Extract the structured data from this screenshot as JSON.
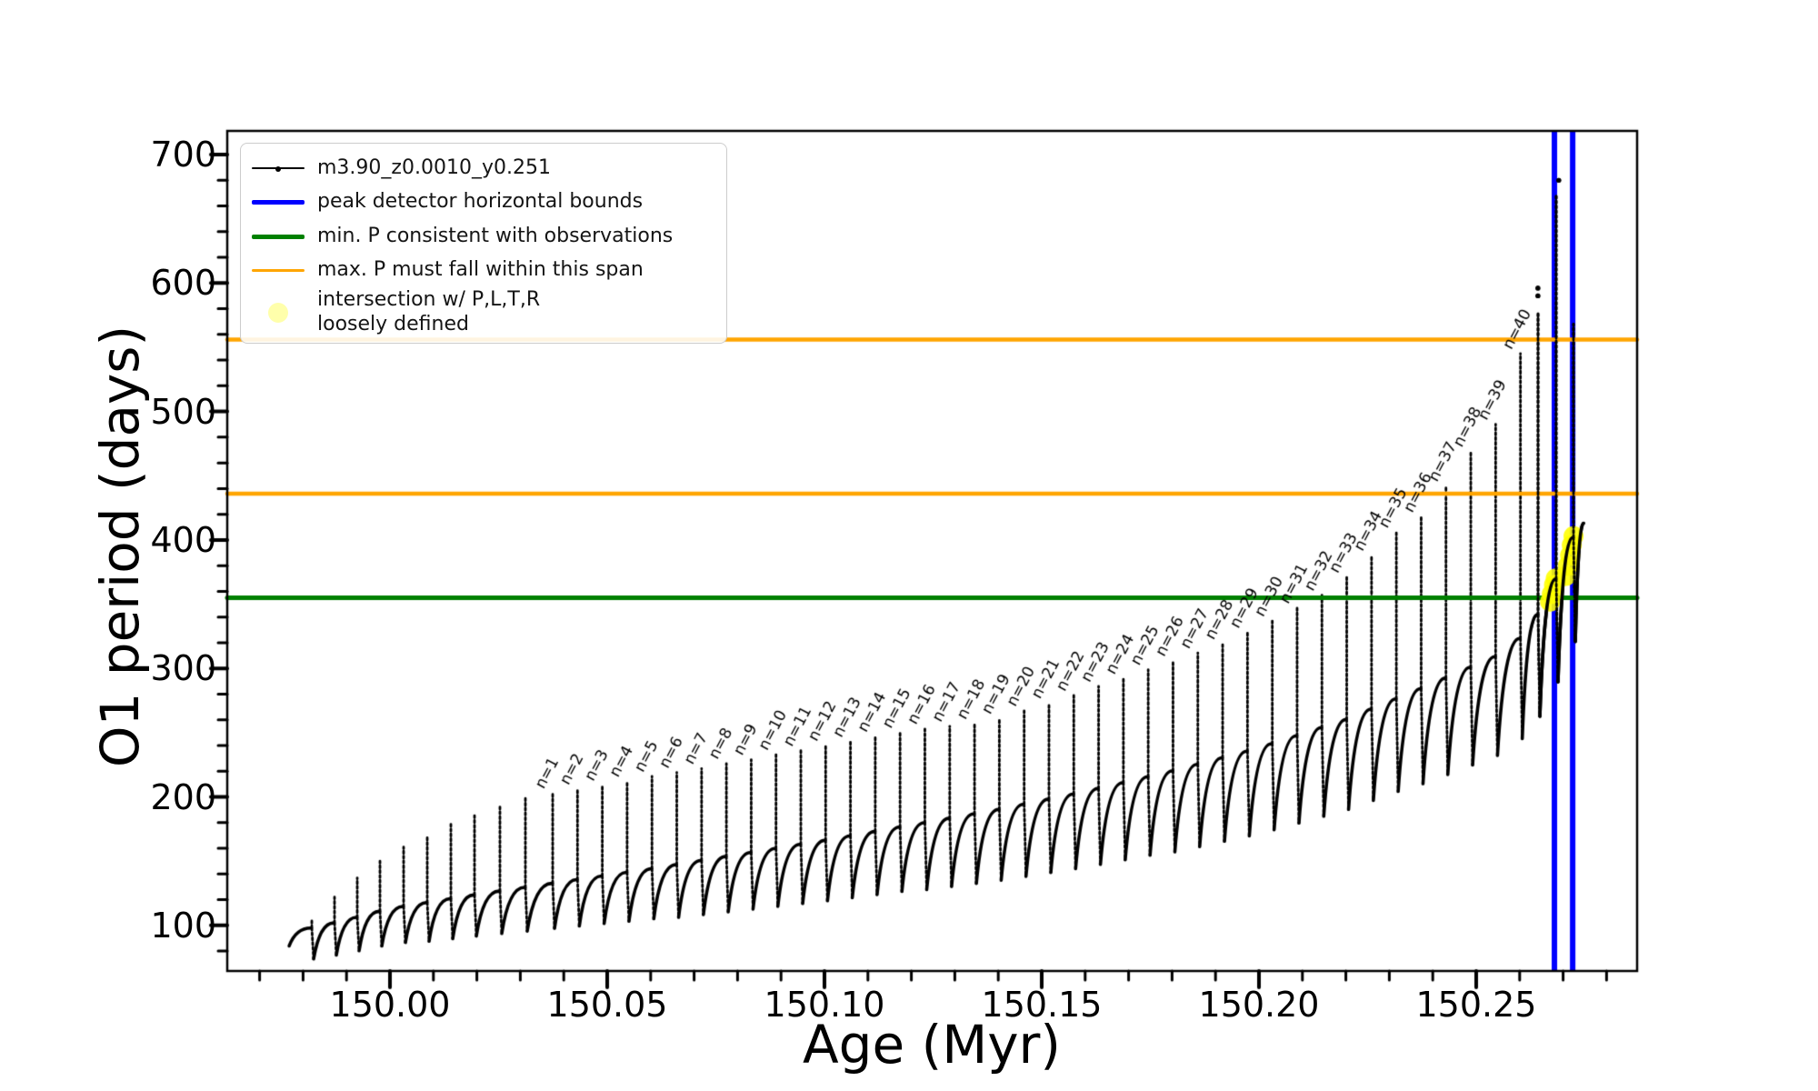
{
  "chart_data": {
    "type": "line",
    "title": "",
    "xlabel": "Age (Myr)",
    "ylabel": "O1 period (days)",
    "xlim": [
      149.96255,
      150.28703
    ],
    "ylim": [
      64.5,
      718.4
    ],
    "grid": false,
    "legend_position": "upper-left",
    "x_major_ticks": [
      {
        "v": 150.0,
        "label": "150.00"
      },
      {
        "v": 150.05,
        "label": "150.05"
      },
      {
        "v": 150.1,
        "label": "150.10"
      },
      {
        "v": 150.15,
        "label": "150.15"
      },
      {
        "v": 150.2,
        "label": "150.20"
      },
      {
        "v": 150.25,
        "label": "150.25"
      }
    ],
    "x_minor_step": 0.01,
    "y_major_ticks": [
      {
        "v": 100,
        "label": "100"
      },
      {
        "v": 200,
        "label": "200"
      },
      {
        "v": 300,
        "label": "300"
      },
      {
        "v": 400,
        "label": "400"
      },
      {
        "v": 500,
        "label": "500"
      },
      {
        "v": 600,
        "label": "600"
      },
      {
        "v": 700,
        "label": "700"
      }
    ],
    "y_minor_step": 20,
    "series": [
      {
        "name": "m3.90_z0.0010_y0.251",
        "color": "#000000",
        "marker": "point"
      }
    ],
    "baseline_anchors": [
      [
        149.9768,
        86
      ],
      [
        149.99,
        96
      ],
      [
        150.0,
        105
      ],
      [
        150.02,
        116
      ],
      [
        150.04,
        126
      ],
      [
        150.06,
        136
      ],
      [
        150.08,
        147
      ],
      [
        150.1,
        158
      ],
      [
        150.12,
        170
      ],
      [
        150.14,
        182
      ],
      [
        150.16,
        196
      ],
      [
        150.18,
        212
      ],
      [
        150.2,
        230
      ],
      [
        150.22,
        252
      ],
      [
        150.24,
        280
      ],
      [
        150.255,
        302
      ],
      [
        150.262,
        320
      ],
      [
        150.2672,
        352
      ],
      [
        150.27,
        374
      ],
      [
        150.2724,
        394
      ],
      [
        150.2747,
        413
      ]
    ],
    "spikes": [
      {
        "a": 149.98201,
        "p": 104,
        "d": 16
      },
      {
        "a": 149.98724,
        "p": 122,
        "d": 17
      },
      {
        "a": 149.99247,
        "p": 137,
        "d": 18
      },
      {
        "a": 149.9977,
        "p": 150,
        "d": 19
      },
      {
        "a": 150.00314,
        "p": 161,
        "d": 20
      },
      {
        "a": 150.00858,
        "p": 170,
        "d": 22
      },
      {
        "a": 150.01402,
        "p": 179,
        "d": 23
      },
      {
        "a": 150.01946,
        "p": 187,
        "d": 24
      },
      {
        "a": 150.02531,
        "p": 194,
        "d": 25
      },
      {
        "a": 150.03117,
        "p": 199,
        "d": 26
      },
      {
        "a": 150.03745,
        "p": 203,
        "d": 27,
        "n": "n=1"
      },
      {
        "a": 150.04316,
        "p": 206,
        "d": 28,
        "n": "n=2"
      },
      {
        "a": 150.04887,
        "p": 209,
        "d": 29,
        "n": "n=3"
      },
      {
        "a": 150.05458,
        "p": 212,
        "d": 30,
        "n": "n=4"
      },
      {
        "a": 150.0603,
        "p": 216,
        "d": 31,
        "n": "n=5"
      },
      {
        "a": 150.06601,
        "p": 219,
        "d": 33,
        "n": "n=6"
      },
      {
        "a": 150.07172,
        "p": 222,
        "d": 34,
        "n": "n=7"
      },
      {
        "a": 150.07743,
        "p": 226,
        "d": 35,
        "n": "n=8"
      },
      {
        "a": 150.08314,
        "p": 229,
        "d": 36,
        "n": "n=9"
      },
      {
        "a": 150.08885,
        "p": 233,
        "d": 37,
        "n": "n=10"
      },
      {
        "a": 150.09456,
        "p": 236,
        "d": 38,
        "n": "n=11"
      },
      {
        "a": 150.10027,
        "p": 240,
        "d": 39,
        "n": "n=12"
      },
      {
        "a": 150.10598,
        "p": 243,
        "d": 40,
        "n": "n=13"
      },
      {
        "a": 150.11169,
        "p": 247,
        "d": 41,
        "n": "n=14"
      },
      {
        "a": 150.1174,
        "p": 250,
        "d": 42,
        "n": "n=15"
      },
      {
        "a": 150.12311,
        "p": 253,
        "d": 44,
        "n": "n=16"
      },
      {
        "a": 150.12883,
        "p": 255,
        "d": 45,
        "n": "n=17"
      },
      {
        "a": 150.13454,
        "p": 257,
        "d": 46,
        "n": "n=18"
      },
      {
        "a": 150.14025,
        "p": 261,
        "d": 47,
        "n": "n=19"
      },
      {
        "a": 150.14596,
        "p": 267,
        "d": 48,
        "n": "n=20"
      },
      {
        "a": 150.15167,
        "p": 273,
        "d": 49,
        "n": "n=21"
      },
      {
        "a": 150.15738,
        "p": 279,
        "d": 50,
        "n": "n=22"
      },
      {
        "a": 150.16309,
        "p": 286,
        "d": 51,
        "n": "n=23"
      },
      {
        "a": 150.1688,
        "p": 292,
        "d": 52,
        "n": "n=24"
      },
      {
        "a": 150.17451,
        "p": 299,
        "d": 53,
        "n": "n=25"
      },
      {
        "a": 150.18022,
        "p": 306,
        "d": 55,
        "n": "n=26"
      },
      {
        "a": 150.18593,
        "p": 312,
        "d": 56,
        "n": "n=27"
      },
      {
        "a": 150.19164,
        "p": 319,
        "d": 57,
        "n": "n=28"
      },
      {
        "a": 150.19736,
        "p": 328,
        "d": 58,
        "n": "n=29"
      },
      {
        "a": 150.20307,
        "p": 337,
        "d": 59,
        "n": "n=30"
      },
      {
        "a": 150.20878,
        "p": 347,
        "d": 60,
        "n": "n=31"
      },
      {
        "a": 150.21449,
        "p": 357,
        "d": 61,
        "n": "n=32"
      },
      {
        "a": 150.2202,
        "p": 371,
        "d": 62,
        "n": "n=33"
      },
      {
        "a": 150.22591,
        "p": 388,
        "d": 63,
        "n": "n=34"
      },
      {
        "a": 150.23162,
        "p": 406,
        "d": 64,
        "n": "n=35"
      },
      {
        "a": 150.23733,
        "p": 418,
        "d": 66,
        "n": "n=36"
      },
      {
        "a": 150.24304,
        "p": 442,
        "d": 67,
        "n": "n=37"
      },
      {
        "a": 150.24875,
        "p": 469,
        "d": 68,
        "n": "n=38"
      },
      {
        "a": 150.25447,
        "p": 490,
        "d": 69,
        "n": "n=39"
      },
      {
        "a": 150.26018,
        "p": 545,
        "d": 70,
        "n": "n=40"
      },
      {
        "a": 150.26423,
        "p": 578,
        "d": 71
      },
      {
        "a": 150.26841,
        "p": 668,
        "d": 72
      },
      {
        "a": 150.27239,
        "p": 568,
        "d": 73
      }
    ],
    "hlines": [
      {
        "y": 556,
        "color": "#FFA500",
        "width": 4.5,
        "label": "max. P must fall within this span"
      },
      {
        "y": 436,
        "color": "#FFA500",
        "width": 4.5,
        "label": "max. P must fall within this span"
      },
      {
        "y": 355,
        "color": "#008000",
        "width": 5,
        "label": "min. P consistent with observations"
      }
    ],
    "vlines": [
      {
        "x": 150.268,
        "color": "#0000FF",
        "width": 6,
        "label": "peak detector horizontal bounds"
      },
      {
        "x": 150.2722,
        "color": "#0000FF",
        "width": 6,
        "label": "peak detector horizontal bounds"
      }
    ],
    "intersection_points": [
      [
        150.267,
        352
      ],
      [
        150.2674,
        358
      ],
      [
        150.2679,
        365
      ],
      [
        150.2683,
        370
      ],
      [
        150.2706,
        372
      ],
      [
        150.2711,
        380
      ],
      [
        150.2716,
        388
      ],
      [
        150.272,
        396
      ],
      [
        150.2724,
        403
      ]
    ],
    "intersection_color": "#FFFF00",
    "stray_points": [
      [
        150.2642,
        590
      ],
      [
        150.2642,
        596
      ],
      [
        150.269,
        680
      ]
    ],
    "legend": {
      "entries": [
        {
          "swatch": "line-dot",
          "color": "#000000",
          "label": "m3.90_z0.0010_y0.251"
        },
        {
          "swatch": "line",
          "color": "#0000FF",
          "label": "peak detector horizontal bounds"
        },
        {
          "swatch": "line",
          "color": "#008000",
          "label": "min. P consistent with observations"
        },
        {
          "swatch": "line-thin-orange",
          "color": "#FFA500",
          "label": "max. P must fall within this span"
        },
        {
          "swatch": "dot",
          "color": "rgba(255,255,0,0.33)",
          "label": "intersection w/ P,L,T,R\nloosely defined"
        }
      ]
    }
  }
}
